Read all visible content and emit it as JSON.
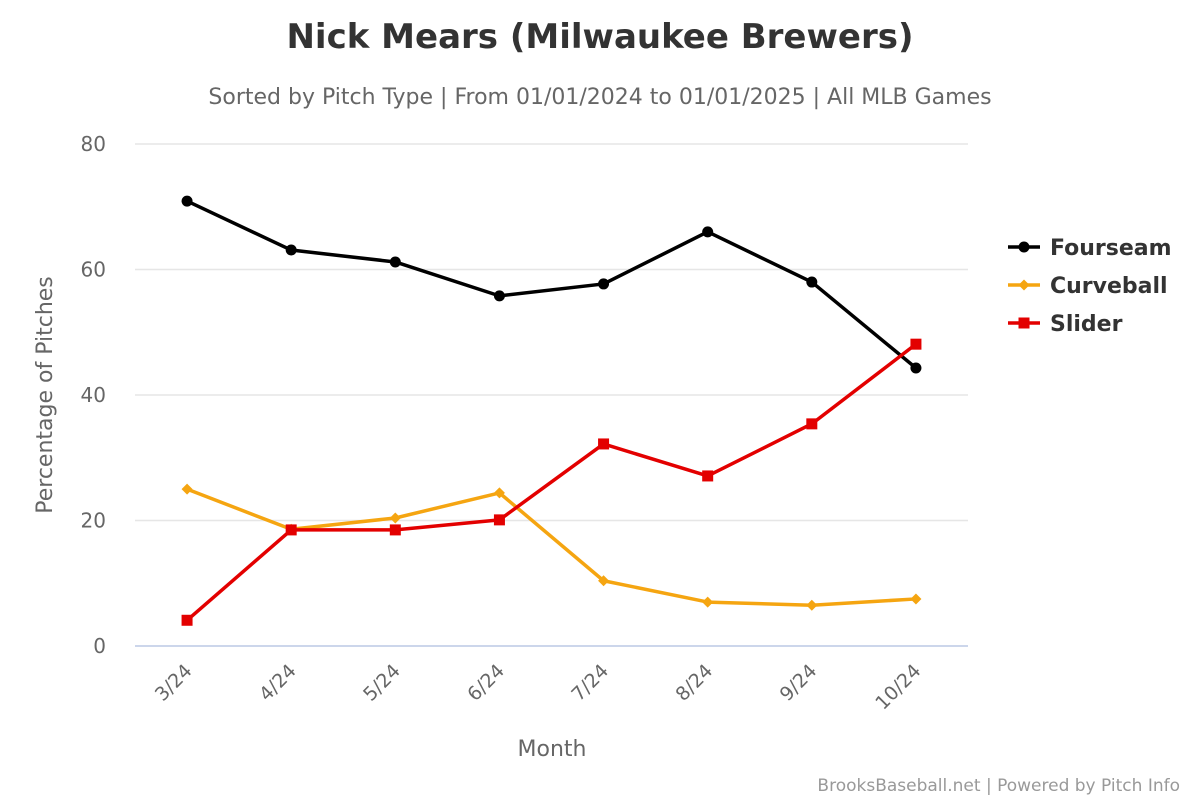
{
  "chart_data": {
    "type": "line",
    "title": "Nick Mears (Milwaukee Brewers)",
    "subtitle": "Sorted by Pitch Type | From 01/01/2024 to 01/01/2025 | All MLB Games",
    "xlabel": "Month",
    "ylabel": "Percentage of Pitches",
    "categories": [
      "3/24",
      "4/24",
      "5/24",
      "6/24",
      "7/24",
      "8/24",
      "9/24",
      "10/24"
    ],
    "ylim": [
      0,
      80
    ],
    "yticks": [
      0,
      20,
      40,
      60,
      80
    ],
    "grid": true,
    "legend_position": "right",
    "series": [
      {
        "name": "Fourseam",
        "color": "#000000",
        "marker": "circle",
        "values": [
          70.9,
          63.1,
          61.2,
          55.8,
          57.7,
          66.0,
          58.0,
          44.3
        ]
      },
      {
        "name": "Curveball",
        "color": "#f5a511",
        "marker": "diamond",
        "values": [
          25.0,
          18.6,
          20.4,
          24.4,
          10.4,
          7.0,
          6.5,
          7.5
        ]
      },
      {
        "name": "Slider",
        "color": "#e30000",
        "marker": "square",
        "values": [
          4.1,
          18.5,
          18.5,
          20.1,
          32.2,
          27.1,
          35.4,
          48.1
        ]
      }
    ],
    "credits": "BrooksBaseball.net | Powered by Pitch Info"
  }
}
